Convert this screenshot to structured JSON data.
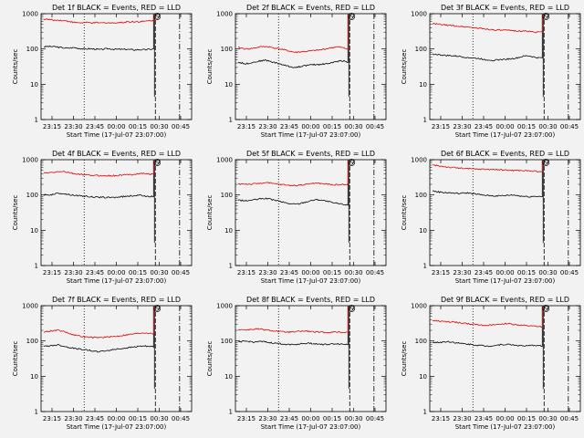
{
  "chart_data": [
    {
      "type": "line",
      "title": "Det 1f BLACK = Events, RED = LLD",
      "ylabel": "Counts/sec",
      "xlabel": "Start Time (17-Jul-07 23:07:00)",
      "yscale": "log",
      "ylim": [
        1,
        1000
      ],
      "yticks": [
        "1",
        "10",
        "100",
        "1000"
      ],
      "xticks": [
        "23:15",
        "23:30",
        "23:45",
        "00:00",
        "00:15",
        "00:30",
        "00:45"
      ],
      "series": [
        {
          "color": "#000000",
          "values": [
            115,
            118,
            117,
            116,
            112,
            108,
            105,
            107,
            110,
            105,
            102,
            100,
            102,
            100,
            98,
            96,
            100,
            102,
            100,
            98,
            98,
            97,
            98,
            96,
            94,
            96,
            95,
            96,
            98,
            100
          ]
        },
        {
          "color": "#dd0000",
          "values": [
            700,
            690,
            670,
            650,
            660,
            640,
            620,
            600,
            560,
            560,
            550,
            560,
            560,
            545,
            560,
            540,
            555,
            555,
            540,
            560,
            560,
            560,
            600,
            580,
            600,
            590,
            600,
            610,
            640,
            630
          ]
        }
      ],
      "spike_label": "S",
      "xlim": [
        0,
        1
      ]
    },
    {
      "type": "line",
      "title": "Det 2f BLACK = Events, RED = LLD",
      "ylabel": "Counts/sec",
      "xlabel": "Start Time (17-Jul-07 23:07:00)",
      "yscale": "log",
      "ylim": [
        1,
        1000
      ],
      "yticks": [
        "1",
        "10",
        "100",
        "1000"
      ],
      "xticks": [
        "23:15",
        "23:30",
        "23:45",
        "00:00",
        "00:15",
        "00:30",
        "00:45"
      ],
      "series": [
        {
          "color": "#000000",
          "values": [
            42,
            40,
            38,
            40,
            42,
            44,
            46,
            48,
            46,
            43,
            40,
            38,
            35,
            33,
            31,
            30,
            31,
            33,
            34,
            35,
            36,
            36,
            37,
            38,
            39,
            41,
            44,
            46,
            46,
            42
          ]
        },
        {
          "color": "#dd0000",
          "values": [
            110,
            105,
            100,
            102,
            105,
            110,
            115,
            118,
            115,
            110,
            105,
            100,
            95,
            90,
            85,
            80,
            82,
            84,
            85,
            87,
            90,
            92,
            95,
            100,
            105,
            110,
            115,
            112,
            105,
            100
          ]
        }
      ],
      "spike_label": "S",
      "xlim": [
        0,
        1
      ]
    },
    {
      "type": "line",
      "title": "Det 3f BLACK = Events, RED = LLD",
      "ylabel": "Counts/sec",
      "xlabel": "Start Time (17-Jul-07 23:07:00)",
      "yscale": "log",
      "ylim": [
        1,
        1000
      ],
      "yticks": [
        "1",
        "10",
        "100",
        "1000"
      ],
      "xticks": [
        "23:15",
        "23:30",
        "23:45",
        "00:00",
        "00:15",
        "00:30",
        "00:45"
      ],
      "series": [
        {
          "color": "#000000",
          "values": [
            72,
            70,
            68,
            66,
            65,
            64,
            63,
            62,
            60,
            58,
            56,
            55,
            54,
            52,
            50,
            49,
            48,
            49,
            50,
            51,
            52,
            53,
            55,
            58,
            62,
            64,
            62,
            58,
            56,
            56
          ]
        },
        {
          "color": "#dd0000",
          "values": [
            520,
            510,
            500,
            480,
            470,
            460,
            450,
            440,
            430,
            420,
            410,
            400,
            390,
            380,
            370,
            360,
            350,
            345,
            340,
            338,
            335,
            330,
            330,
            325,
            320,
            320,
            310,
            305,
            300,
            300
          ]
        }
      ],
      "spike_label": "S",
      "xlim": [
        0,
        1
      ]
    },
    {
      "type": "line",
      "title": "Det 4f BLACK = Events, RED = LLD",
      "ylabel": "Counts/sec",
      "xlabel": "Start Time (17-Jul-07 23:07:00)",
      "yscale": "log",
      "ylim": [
        1,
        1000
      ],
      "yticks": [
        "1",
        "10",
        "100",
        "1000"
      ],
      "xticks": [
        "23:15",
        "23:30",
        "23:45",
        "00:00",
        "00:15",
        "00:30",
        "00:45"
      ],
      "series": [
        {
          "color": "#000000",
          "values": [
            100,
            100,
            102,
            108,
            112,
            110,
            105,
            102,
            98,
            96,
            94,
            92,
            90,
            88,
            86,
            86,
            85,
            85,
            85,
            86,
            88,
            90,
            92,
            94,
            96,
            98,
            96,
            94,
            92,
            90
          ]
        },
        {
          "color": "#dd0000",
          "values": [
            420,
            420,
            430,
            440,
            460,
            470,
            440,
            420,
            400,
            390,
            380,
            370,
            365,
            360,
            355,
            355,
            350,
            350,
            350,
            355,
            360,
            370,
            375,
            380,
            390,
            400,
            410,
            400,
            395,
            390
          ]
        }
      ],
      "spike_label": "S",
      "xlim": [
        0,
        1
      ]
    },
    {
      "type": "line",
      "title": "Det 5f BLACK = Events, RED = LLD",
      "ylabel": "Counts/sec",
      "xlabel": "Start Time (17-Jul-07 23:07:00)",
      "yscale": "log",
      "ylim": [
        1,
        1000
      ],
      "yticks": [
        "1",
        "10",
        "100",
        "1000"
      ],
      "xticks": [
        "23:15",
        "23:30",
        "23:45",
        "00:00",
        "00:15",
        "00:30",
        "00:45"
      ],
      "series": [
        {
          "color": "#000000",
          "values": [
            72,
            70,
            68,
            70,
            72,
            75,
            78,
            80,
            78,
            74,
            70,
            66,
            62,
            58,
            56,
            55,
            56,
            60,
            64,
            68,
            72,
            74,
            72,
            68,
            64,
            60,
            58,
            56,
            54,
            52
          ]
        },
        {
          "color": "#dd0000",
          "values": [
            205,
            205,
            205,
            200,
            205,
            210,
            215,
            225,
            220,
            210,
            205,
            200,
            195,
            190,
            185,
            185,
            190,
            195,
            200,
            210,
            215,
            215,
            210,
            205,
            200,
            195,
            195,
            195,
            200,
            205
          ]
        }
      ],
      "spike_label": "S",
      "xlim": [
        0,
        1
      ]
    },
    {
      "type": "line",
      "title": "Det 6f BLACK = Events, RED = LLD",
      "ylabel": "Counts/sec",
      "xlabel": "Start Time (17-Jul-07 23:07:00)",
      "yscale": "log",
      "ylim": [
        1,
        1000
      ],
      "yticks": [
        "1",
        "10",
        "100",
        "1000"
      ],
      "xticks": [
        "23:15",
        "23:30",
        "23:45",
        "00:00",
        "00:15",
        "00:30",
        "00:45"
      ],
      "series": [
        {
          "color": "#000000",
          "values": [
            130,
            125,
            120,
            118,
            116,
            114,
            112,
            110,
            112,
            115,
            112,
            108,
            104,
            100,
            98,
            96,
            95,
            94,
            95,
            96,
            98,
            100,
            98,
            94,
            92,
            90,
            90,
            92,
            92,
            90
          ]
        },
        {
          "color": "#dd0000",
          "values": [
            700,
            680,
            660,
            640,
            620,
            600,
            590,
            580,
            570,
            560,
            550,
            545,
            540,
            540,
            535,
            530,
            530,
            520,
            515,
            510,
            505,
            500,
            500,
            495,
            490,
            485,
            480,
            470,
            460,
            460
          ]
        }
      ],
      "spike_label": "S",
      "xlim": [
        0,
        1
      ]
    },
    {
      "type": "line",
      "title": "Det 7f BLACK = Events, RED = LLD",
      "ylabel": "Counts/sec",
      "xlabel": "Start Time (17-Jul-07 23:07:00)",
      "yscale": "log",
      "ylim": [
        1,
        1000
      ],
      "yticks": [
        "1",
        "10",
        "100",
        "1000"
      ],
      "xticks": [
        "23:15",
        "23:30",
        "23:45",
        "00:00",
        "00:15",
        "00:30",
        "00:45"
      ],
      "series": [
        {
          "color": "#000000",
          "values": [
            70,
            72,
            74,
            76,
            78,
            72,
            68,
            65,
            62,
            60,
            58,
            56,
            54,
            52,
            50,
            50,
            52,
            54,
            56,
            58,
            60,
            62,
            64,
            66,
            68,
            70,
            72,
            72,
            70,
            68
          ]
        },
        {
          "color": "#dd0000",
          "values": [
            180,
            185,
            195,
            200,
            200,
            190,
            175,
            160,
            150,
            140,
            135,
            130,
            128,
            125,
            125,
            125,
            128,
            130,
            132,
            135,
            140,
            145,
            150,
            155,
            160,
            165,
            170,
            170,
            165,
            160
          ]
        }
      ],
      "spike_label": "S",
      "xlim": [
        0,
        1
      ]
    },
    {
      "type": "line",
      "title": "Det 8f BLACK = Events, RED = LLD",
      "ylabel": "Counts/sec",
      "xlabel": "Start Time (17-Jul-07 23:07:00)",
      "yscale": "log",
      "ylim": [
        1,
        1000
      ],
      "yticks": [
        "1",
        "10",
        "100",
        "1000"
      ],
      "xticks": [
        "23:15",
        "23:30",
        "23:45",
        "00:00",
        "00:15",
        "00:30",
        "00:45"
      ],
      "series": [
        {
          "color": "#000000",
          "values": [
            95,
            96,
            98,
            96,
            94,
            95,
            96,
            94,
            90,
            88,
            86,
            84,
            82,
            80,
            80,
            80,
            82,
            84,
            86,
            86,
            84,
            82,
            80,
            80,
            80,
            82,
            84,
            82,
            80,
            80
          ]
        },
        {
          "color": "#dd0000",
          "values": [
            210,
            210,
            205,
            210,
            215,
            220,
            215,
            205,
            200,
            195,
            190,
            185,
            180,
            178,
            178,
            180,
            185,
            190,
            190,
            185,
            180,
            178,
            176,
            175,
            175,
            178,
            180,
            178,
            175,
            175
          ]
        }
      ],
      "spike_label": "S",
      "xlim": [
        0,
        1
      ]
    },
    {
      "type": "line",
      "title": "Det 9f BLACK = Events, RED = LLD",
      "ylabel": "Counts/sec",
      "xlabel": "Start Time (17-Jul-07 23:07:00)",
      "yscale": "log",
      "ylim": [
        1,
        1000
      ],
      "yticks": [
        "1",
        "10",
        "100",
        "1000"
      ],
      "xticks": [
        "23:15",
        "23:30",
        "23:45",
        "00:00",
        "00:15",
        "00:30",
        "00:45"
      ],
      "series": [
        {
          "color": "#000000",
          "values": [
            92,
            90,
            92,
            94,
            96,
            94,
            90,
            86,
            84,
            82,
            80,
            78,
            76,
            74,
            72,
            72,
            74,
            76,
            78,
            80,
            80,
            78,
            76,
            74,
            72,
            72,
            74,
            76,
            74,
            72
          ]
        },
        {
          "color": "#dd0000",
          "values": [
            380,
            370,
            360,
            355,
            350,
            345,
            340,
            330,
            320,
            310,
            300,
            295,
            290,
            285,
            280,
            278,
            280,
            290,
            300,
            310,
            310,
            300,
            290,
            280,
            275,
            270,
            265,
            260,
            255,
            250
          ]
        }
      ],
      "spike_label": "S",
      "xlim": [
        0,
        1
      ]
    }
  ]
}
